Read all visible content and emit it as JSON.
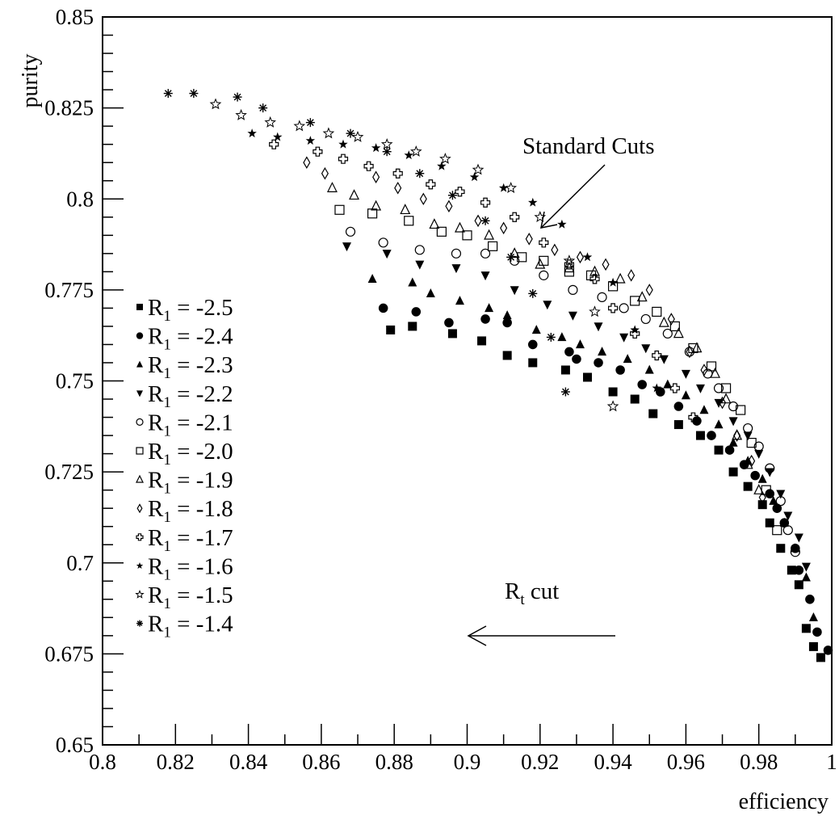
{
  "chart_data": {
    "type": "scatter",
    "title": "",
    "xlabel": "efficiency",
    "ylabel": "purity",
    "xlim": [
      0.8,
      1.0
    ],
    "ylim": [
      0.65,
      0.85
    ],
    "xticks": [
      "0.8",
      "0.82",
      "0.84",
      "0.86",
      "0.88",
      "0.9",
      "0.92",
      "0.94",
      "0.96",
      "0.98",
      "1"
    ],
    "yticks": [
      "0.65",
      "0.675",
      "0.7",
      "0.725",
      "0.75",
      "0.775",
      "0.8",
      "0.825",
      "0.85"
    ],
    "grid": false,
    "legend_position": "left",
    "annotations": {
      "standard_cuts": "Standard Cuts",
      "rt_cut": "cut",
      "rt_symbol": "R",
      "rt_subscript": "t"
    },
    "series": [
      {
        "name": "R1 = -2.5",
        "legend_main": "R",
        "legend_sub": "1",
        "legend_value": " = -2.5",
        "marker": "filled-square",
        "x": [
          0.879,
          0.885,
          0.896,
          0.904,
          0.911,
          0.918,
          0.927,
          0.933,
          0.94,
          0.946,
          0.951,
          0.958,
          0.964,
          0.969,
          0.973,
          0.977,
          0.981,
          0.983,
          0.986,
          0.989,
          0.991,
          0.993,
          0.995,
          0.997
        ],
        "y": [
          0.764,
          0.765,
          0.763,
          0.761,
          0.757,
          0.755,
          0.753,
          0.751,
          0.747,
          0.745,
          0.741,
          0.738,
          0.735,
          0.731,
          0.725,
          0.721,
          0.716,
          0.711,
          0.704,
          0.698,
          0.694,
          0.682,
          0.677,
          0.674
        ]
      },
      {
        "name": "R1 = -2.4",
        "legend_main": "R",
        "legend_sub": "1",
        "legend_value": " = -2.4",
        "marker": "filled-circle",
        "x": [
          0.877,
          0.886,
          0.895,
          0.905,
          0.911,
          0.918,
          0.928,
          0.93,
          0.936,
          0.942,
          0.948,
          0.953,
          0.958,
          0.963,
          0.967,
          0.972,
          0.976,
          0.979,
          0.983,
          0.985,
          0.987,
          0.99,
          0.991,
          0.994,
          0.996,
          0.999
        ],
        "y": [
          0.77,
          0.769,
          0.766,
          0.767,
          0.766,
          0.76,
          0.758,
          0.756,
          0.755,
          0.753,
          0.749,
          0.747,
          0.743,
          0.739,
          0.735,
          0.731,
          0.727,
          0.724,
          0.719,
          0.715,
          0.711,
          0.704,
          0.698,
          0.69,
          0.681,
          0.676
        ]
      },
      {
        "name": "R1 = -2.3",
        "legend_main": "R",
        "legend_sub": "1",
        "legend_value": " = -2.3",
        "marker": "filled-triangle-up",
        "x": [
          0.874,
          0.885,
          0.89,
          0.898,
          0.906,
          0.911,
          0.919,
          0.926,
          0.931,
          0.937,
          0.944,
          0.95,
          0.955,
          0.96,
          0.965,
          0.969,
          0.973,
          0.977,
          0.981,
          0.984,
          0.987,
          0.99,
          0.993,
          0.995
        ],
        "y": [
          0.778,
          0.777,
          0.774,
          0.772,
          0.77,
          0.768,
          0.764,
          0.762,
          0.76,
          0.758,
          0.756,
          0.753,
          0.749,
          0.746,
          0.742,
          0.738,
          0.733,
          0.728,
          0.723,
          0.717,
          0.711,
          0.704,
          0.696,
          0.685
        ]
      },
      {
        "name": "R1 = -2.2",
        "legend_main": "R",
        "legend_sub": "1",
        "legend_value": " = -2.2",
        "marker": "filled-triangle-down",
        "x": [
          0.867,
          0.878,
          0.887,
          0.897,
          0.905,
          0.913,
          0.922,
          0.929,
          0.936,
          0.943,
          0.949,
          0.954,
          0.96,
          0.964,
          0.969,
          0.973,
          0.977,
          0.98,
          0.983,
          0.986,
          0.988,
          0.991,
          0.993
        ],
        "y": [
          0.787,
          0.785,
          0.782,
          0.781,
          0.779,
          0.775,
          0.771,
          0.768,
          0.765,
          0.762,
          0.759,
          0.756,
          0.752,
          0.748,
          0.744,
          0.739,
          0.735,
          0.73,
          0.725,
          0.719,
          0.713,
          0.707,
          0.699
        ]
      },
      {
        "name": "R1 = -2.1",
        "legend_main": "R",
        "legend_sub": "1",
        "legend_value": " = -2.1",
        "marker": "open-circle",
        "x": [
          0.868,
          0.877,
          0.887,
          0.897,
          0.905,
          0.913,
          0.921,
          0.929,
          0.937,
          0.943,
          0.949,
          0.955,
          0.961,
          0.966,
          0.969,
          0.973,
          0.977,
          0.98,
          0.983,
          0.986,
          0.988,
          0.99
        ],
        "y": [
          0.791,
          0.788,
          0.786,
          0.785,
          0.785,
          0.783,
          0.779,
          0.775,
          0.773,
          0.77,
          0.767,
          0.763,
          0.758,
          0.752,
          0.748,
          0.743,
          0.737,
          0.732,
          0.726,
          0.717,
          0.709,
          0.703
        ]
      },
      {
        "name": "R1 = -2.0",
        "legend_main": "R",
        "legend_sub": "1",
        "legend_value": " = -2.0",
        "marker": "open-square",
        "x": [
          0.865,
          0.874,
          0.884,
          0.893,
          0.9,
          0.907,
          0.915,
          0.921,
          0.928,
          0.934,
          0.94,
          0.946,
          0.952,
          0.957,
          0.962,
          0.967,
          0.971,
          0.975,
          0.978,
          0.982,
          0.985
        ],
        "y": [
          0.797,
          0.796,
          0.794,
          0.791,
          0.79,
          0.787,
          0.784,
          0.783,
          0.78,
          0.779,
          0.776,
          0.772,
          0.769,
          0.765,
          0.759,
          0.754,
          0.748,
          0.742,
          0.733,
          0.72,
          0.709
        ]
      },
      {
        "name": "R1 = -1.9",
        "legend_main": "R",
        "legend_sub": "1",
        "legend_value": " = -1.9",
        "marker": "open-triangle-up",
        "x": [
          0.863,
          0.869,
          0.875,
          0.883,
          0.891,
          0.898,
          0.906,
          0.913,
          0.92,
          0.928,
          0.935,
          0.942,
          0.948,
          0.954,
          0.958,
          0.963,
          0.968,
          0.971,
          0.974,
          0.977,
          0.98
        ],
        "y": [
          0.803,
          0.801,
          0.798,
          0.797,
          0.793,
          0.792,
          0.79,
          0.785,
          0.782,
          0.781,
          0.78,
          0.778,
          0.773,
          0.766,
          0.763,
          0.759,
          0.752,
          0.745,
          0.735,
          0.727,
          0.72
        ]
      },
      {
        "name": "R1 = -1.8",
        "legend_main": "R",
        "legend_sub": "1",
        "legend_value": " = -1.8",
        "marker": "open-diamond",
        "x": [
          0.856,
          0.861,
          0.875,
          0.881,
          0.888,
          0.895,
          0.903,
          0.91,
          0.917,
          0.924,
          0.931,
          0.938,
          0.945,
          0.95,
          0.956,
          0.961,
          0.965,
          0.97,
          0.974,
          0.978,
          0.981
        ],
        "y": [
          0.81,
          0.807,
          0.806,
          0.803,
          0.8,
          0.798,
          0.794,
          0.792,
          0.789,
          0.786,
          0.784,
          0.782,
          0.779,
          0.775,
          0.767,
          0.758,
          0.753,
          0.744,
          0.735,
          0.728,
          0.718
        ]
      },
      {
        "name": "R1 = -1.7",
        "legend_main": "R",
        "legend_sub": "1",
        "legend_value": " = -1.7",
        "marker": "open-cross",
        "x": [
          0.847,
          0.859,
          0.866,
          0.873,
          0.881,
          0.89,
          0.898,
          0.905,
          0.913,
          0.921,
          0.928,
          0.935,
          0.94,
          0.946,
          0.952,
          0.957,
          0.962
        ],
        "y": [
          0.815,
          0.813,
          0.811,
          0.809,
          0.807,
          0.804,
          0.802,
          0.799,
          0.795,
          0.788,
          0.782,
          0.778,
          0.77,
          0.763,
          0.757,
          0.748,
          0.74
        ]
      },
      {
        "name": "R1 = -1.6",
        "legend_main": "R",
        "legend_sub": "1",
        "legend_value": " = -1.6",
        "marker": "filled-star",
        "x": [
          0.841,
          0.848,
          0.857,
          0.866,
          0.875,
          0.884,
          0.893,
          0.902,
          0.91,
          0.918,
          0.926,
          0.933,
          0.94,
          0.946,
          0.952
        ],
        "y": [
          0.818,
          0.817,
          0.816,
          0.815,
          0.814,
          0.812,
          0.809,
          0.806,
          0.803,
          0.799,
          0.793,
          0.784,
          0.777,
          0.764,
          0.748
        ]
      },
      {
        "name": "R1 = -1.5",
        "legend_main": "R",
        "legend_sub": "1",
        "legend_value": " = -1.5",
        "marker": "open-star",
        "x": [
          0.831,
          0.838,
          0.846,
          0.854,
          0.862,
          0.87,
          0.878,
          0.886,
          0.894,
          0.903,
          0.912,
          0.92,
          0.928,
          0.935,
          0.94
        ],
        "y": [
          0.826,
          0.823,
          0.821,
          0.82,
          0.818,
          0.817,
          0.815,
          0.813,
          0.811,
          0.808,
          0.803,
          0.795,
          0.783,
          0.769,
          0.743
        ]
      },
      {
        "name": "R1 = -1.4",
        "legend_main": "R",
        "legend_sub": "1",
        "legend_value": " = -1.4",
        "marker": "asterisk",
        "x": [
          0.818,
          0.825,
          0.837,
          0.844,
          0.857,
          0.868,
          0.878,
          0.887,
          0.896,
          0.905,
          0.912,
          0.918,
          0.923,
          0.927
        ],
        "y": [
          0.829,
          0.829,
          0.828,
          0.825,
          0.821,
          0.818,
          0.813,
          0.807,
          0.801,
          0.794,
          0.784,
          0.774,
          0.762,
          0.747
        ]
      }
    ]
  }
}
